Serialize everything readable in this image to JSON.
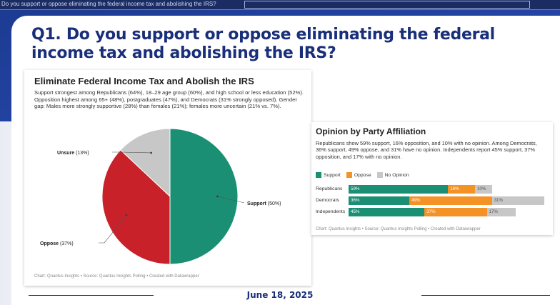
{
  "window": {
    "title": "Do you support or oppose eliminating the federal income tax and abolishing the IRS?"
  },
  "slide": {
    "title": "Q1. Do you support or oppose eliminating the federal income tax and abolishing the IRS?",
    "date": "June 18, 2025"
  },
  "colors": {
    "support": "#1a8f73",
    "oppose": "#c8212a",
    "unsure": "#c7c7c7",
    "oppose_orange": "#f59226",
    "brand_navy": "#1a2f7a"
  },
  "left_card": {
    "title": "Eliminate Federal Income Tax and Abolish the IRS",
    "description": "Support strongest among Republicans (64%), 18–29 age group (60%), and high school or less education (52%). Opposition highest among 65+ (48%), postgraduates (47%), and Democrats (31% strongly opposed). Gender gap: Males more strongly supportive (28%) than females (21%); females more uncertain (21% vs. 7%).",
    "credit": "Chart: Quantus Insights • Source: Quantus Insights Polling • Created with Datawrapper"
  },
  "right_card": {
    "title": "Opinion by Party Affiliation",
    "description": "Republicans show 59% support, 16% opposition, and 10% with no opinion. Among Democrats, 36% support, 49% oppose, and 31% have no opinion. Independents report 45% support, 37% opposition, and 17% with no opinion.",
    "credit": "Chart: Quantus Insights • Source: Quantus Insights Polling • Created with Datawrapper"
  },
  "chart_data": [
    {
      "type": "pie",
      "title": "Eliminate Federal Income Tax and Abolish the IRS",
      "categories": [
        "Support",
        "Oppose",
        "Unsure"
      ],
      "values": [
        50,
        37,
        13
      ],
      "labels": [
        "(50%)",
        "(37%)",
        "(13%)"
      ]
    },
    {
      "type": "bar",
      "title": "Opinion by Party Affiliation",
      "stacked": true,
      "orientation": "horizontal",
      "categories": [
        "Republicans",
        "Democrats",
        "Independents"
      ],
      "series": [
        {
          "name": "Support",
          "values": [
            59,
            36,
            45
          ]
        },
        {
          "name": "Oppose",
          "values": [
            16,
            49,
            37
          ]
        },
        {
          "name": "No Opinion",
          "values": [
            10,
            31,
            17
          ]
        }
      ],
      "legend": "top-left"
    }
  ]
}
